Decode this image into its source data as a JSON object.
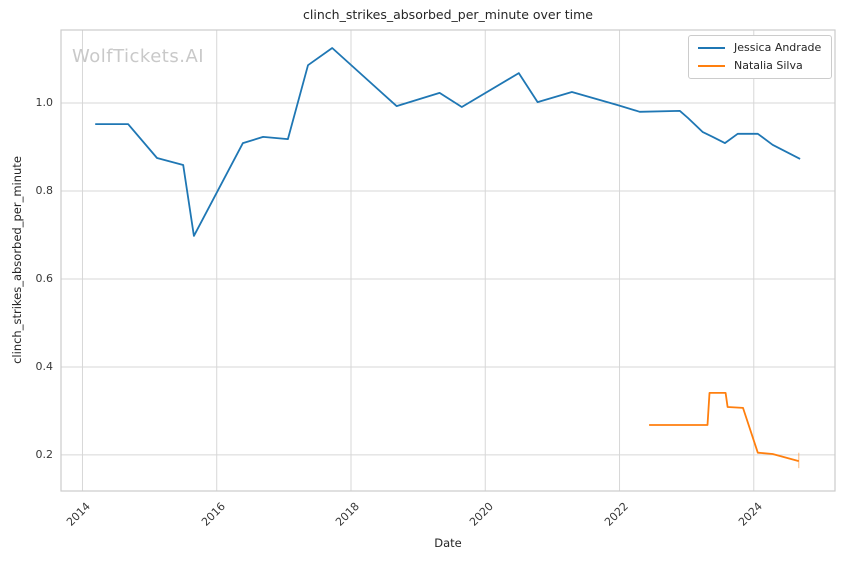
{
  "figure": {
    "title": "clinch_strikes_absorbed_per_minute over time",
    "watermark": "WolfTickets.AI",
    "xlabel": "Date",
    "ylabel": "clinch_strikes_absorbed_per_minute"
  },
  "legend": {
    "items": [
      {
        "label": "Jessica Andrade",
        "color": "#1f77b4"
      },
      {
        "label": "Natalia Silva",
        "color": "#ff7f0e"
      }
    ]
  },
  "colors": {
    "background": "#ffffff",
    "grid": "#d7d7d7",
    "spine": "#cccccc",
    "text": "#262626",
    "watermark": "#c9c9c9",
    "series_blue": "#1f77b4",
    "series_orange": "#ff7f0e"
  },
  "chart_data": {
    "type": "line",
    "title": "clinch_strikes_absorbed_per_minute over time",
    "xlabel": "Date",
    "ylabel": "clinch_strikes_absorbed_per_minute",
    "grid": true,
    "legend_position": "upper right",
    "xlim": [
      2013.68,
      2025.21
    ],
    "ylim": [
      0.118,
      1.166
    ],
    "x_ticks": [
      2014,
      2016,
      2018,
      2020,
      2022,
      2024
    ],
    "x_tick_labels": [
      "2014",
      "2016",
      "2018",
      "2020",
      "2022",
      "2024"
    ],
    "y_ticks": [
      0.2,
      0.4,
      0.6,
      0.8,
      1.0
    ],
    "y_tick_labels": [
      "0.2",
      "0.4",
      "0.6",
      "0.8",
      "1.0"
    ],
    "series": [
      {
        "name": "Jessica Andrade",
        "color": "#1f77b4",
        "points": [
          [
            2014.19,
            0.952
          ],
          [
            2014.68,
            0.952
          ],
          [
            2015.11,
            0.875
          ],
          [
            2015.5,
            0.859
          ],
          [
            2015.66,
            0.698
          ],
          [
            2016.39,
            0.909
          ],
          [
            2016.69,
            0.923
          ],
          [
            2017.06,
            0.918
          ],
          [
            2017.36,
            1.086
          ],
          [
            2017.72,
            1.125
          ],
          [
            2018.68,
            0.993
          ],
          [
            2019.32,
            1.023
          ],
          [
            2019.65,
            0.991
          ],
          [
            2020.5,
            1.068
          ],
          [
            2020.78,
            1.002
          ],
          [
            2021.29,
            1.025
          ],
          [
            2021.98,
            0.995
          ],
          [
            2022.3,
            0.98
          ],
          [
            2022.9,
            0.982
          ],
          [
            2023.02,
            0.966
          ],
          [
            2023.24,
            0.934
          ],
          [
            2023.39,
            0.923
          ],
          [
            2023.57,
            0.909
          ],
          [
            2023.76,
            0.93
          ],
          [
            2024.06,
            0.93
          ],
          [
            2024.28,
            0.905
          ],
          [
            2024.69,
            0.873
          ]
        ]
      },
      {
        "name": "Natalia Silva",
        "color": "#ff7f0e",
        "points": [
          [
            2022.44,
            0.268
          ],
          [
            2023.31,
            0.268
          ],
          [
            2023.34,
            0.341
          ],
          [
            2023.58,
            0.341
          ],
          [
            2023.61,
            0.309
          ],
          [
            2023.84,
            0.307
          ],
          [
            2024.06,
            0.205
          ],
          [
            2024.28,
            0.202
          ],
          [
            2024.67,
            0.186
          ]
        ],
        "end_tick": {
          "x": 2024.67,
          "y_from": 0.205,
          "y_to": 0.17
        }
      }
    ]
  }
}
